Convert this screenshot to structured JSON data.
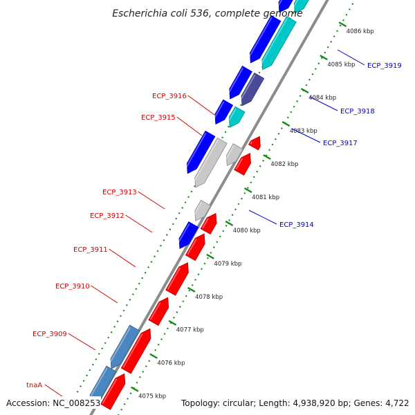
{
  "title": "Escherichia coli 536, complete genome",
  "footer": {
    "accession": "Accession: NC_008253",
    "topology": "Topology: circular; Length: 4,938,920 bp; Genes: 4,722"
  },
  "colors": {
    "forward_cds": "#ff0000",
    "reverse_cds": "#0000ff",
    "cyan_cds": "#00c8c8",
    "slate_cds": "#4a4a9a",
    "steel_cds": "#4a86c0",
    "grey_cds": "#c8c8c8",
    "backbone": "#888888",
    "ticks": "#1a8a1a",
    "forward_label": "#cc0000",
    "reverse_label": "#0000cc"
  },
  "ruler": [
    {
      "label": "4075 kbp"
    },
    {
      "label": "4076 kbp"
    },
    {
      "label": "4077 kbp"
    },
    {
      "label": "4078 kbp"
    },
    {
      "label": "4079 kbp"
    },
    {
      "label": "4080 kbp"
    },
    {
      "label": "4081 kbp"
    },
    {
      "label": "4082 kbp"
    },
    {
      "label": "4083 kbp"
    },
    {
      "label": "4084 kbp"
    },
    {
      "label": "4085 kbp"
    },
    {
      "label": "4086 kbp"
    }
  ],
  "gene_labels": [
    {
      "text": "tnaA",
      "strand": "forward"
    },
    {
      "text": "ECP_3909",
      "strand": "forward"
    },
    {
      "text": "ECP_3910",
      "strand": "forward"
    },
    {
      "text": "ECP_3911",
      "strand": "forward"
    },
    {
      "text": "ECP_3912",
      "strand": "forward"
    },
    {
      "text": "ECP_3913",
      "strand": "forward"
    },
    {
      "text": "ECP_3915",
      "strand": "forward"
    },
    {
      "text": "ECP_3916",
      "strand": "forward"
    },
    {
      "text": "ECP_3914",
      "strand": "reverse"
    },
    {
      "text": "ECP_3917",
      "strand": "reverse"
    },
    {
      "text": "ECP_3918",
      "strand": "reverse"
    },
    {
      "text": "ECP_3919",
      "strand": "reverse"
    }
  ]
}
